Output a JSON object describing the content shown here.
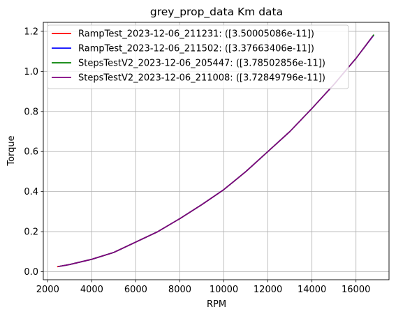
{
  "chart_data": {
    "type": "line",
    "title": "grey_prop_data Km data",
    "xlabel": "RPM",
    "ylabel": "Torque",
    "xlim": [
      1800,
      17500
    ],
    "ylim": [
      -0.04,
      1.245
    ],
    "xticks": [
      2000,
      4000,
      6000,
      8000,
      10000,
      12000,
      14000,
      16000
    ],
    "xtick_labels": [
      "2000",
      "4000",
      "6000",
      "8000",
      "10000",
      "12000",
      "14000",
      "16000"
    ],
    "yticks": [
      0.0,
      0.2,
      0.4,
      0.6,
      0.8,
      1.0,
      1.2
    ],
    "ytick_labels": [
      "0.0",
      "0.2",
      "0.4",
      "0.6",
      "0.8",
      "1.0",
      "1.2"
    ],
    "grid": true,
    "legend_position": "top-left",
    "series": [
      {
        "name": "RampTest_2023-12-06_211231: ([3.50005086e-11])",
        "color": "#ff0000",
        "x": [
          2450,
          3000,
          4000,
          5000,
          6000,
          7000,
          8000,
          9000,
          10000,
          11000,
          12000,
          13000,
          14000,
          15000,
          16000,
          16800
        ],
        "y": [
          0.025,
          0.036,
          0.062,
          0.096,
          0.148,
          0.2,
          0.265,
          0.335,
          0.41,
          0.5,
          0.6,
          0.7,
          0.815,
          0.935,
          1.065,
          1.18
        ]
      },
      {
        "name": "RampTest_2023-12-06_211502: ([3.37663406e-11])",
        "color": "#0000ff",
        "x": [
          2500,
          3000,
          4000,
          5000,
          6000,
          7000,
          8000,
          9000,
          10000,
          11000,
          12000,
          13000,
          14000,
          15000,
          16000,
          16800
        ],
        "y": [
          0.026,
          0.036,
          0.062,
          0.096,
          0.148,
          0.2,
          0.265,
          0.335,
          0.41,
          0.5,
          0.6,
          0.7,
          0.815,
          0.935,
          1.065,
          1.18
        ]
      },
      {
        "name": "StepsTestV2_2023-12-06_205447: ([3.78502856e-11])",
        "color": "#008000",
        "x": [
          2500,
          3000,
          4000,
          5000,
          6000,
          7000,
          8000,
          9000,
          10000,
          11000,
          12000,
          13000,
          14000,
          15000,
          16000,
          16800
        ],
        "y": [
          0.026,
          0.036,
          0.062,
          0.096,
          0.148,
          0.2,
          0.265,
          0.335,
          0.41,
          0.5,
          0.6,
          0.7,
          0.815,
          0.935,
          1.065,
          1.182
        ]
      },
      {
        "name": "StepsTestV2_2023-12-06_211008: ([3.72849796e-11])",
        "color": "#800080",
        "x": [
          2500,
          3000,
          4000,
          5000,
          6000,
          7000,
          8000,
          9000,
          10000,
          11000,
          12000,
          13000,
          14000,
          15000,
          16000,
          16750
        ],
        "y": [
          0.026,
          0.036,
          0.062,
          0.096,
          0.148,
          0.2,
          0.265,
          0.335,
          0.41,
          0.5,
          0.6,
          0.7,
          0.815,
          0.935,
          1.065,
          1.175
        ]
      }
    ]
  }
}
